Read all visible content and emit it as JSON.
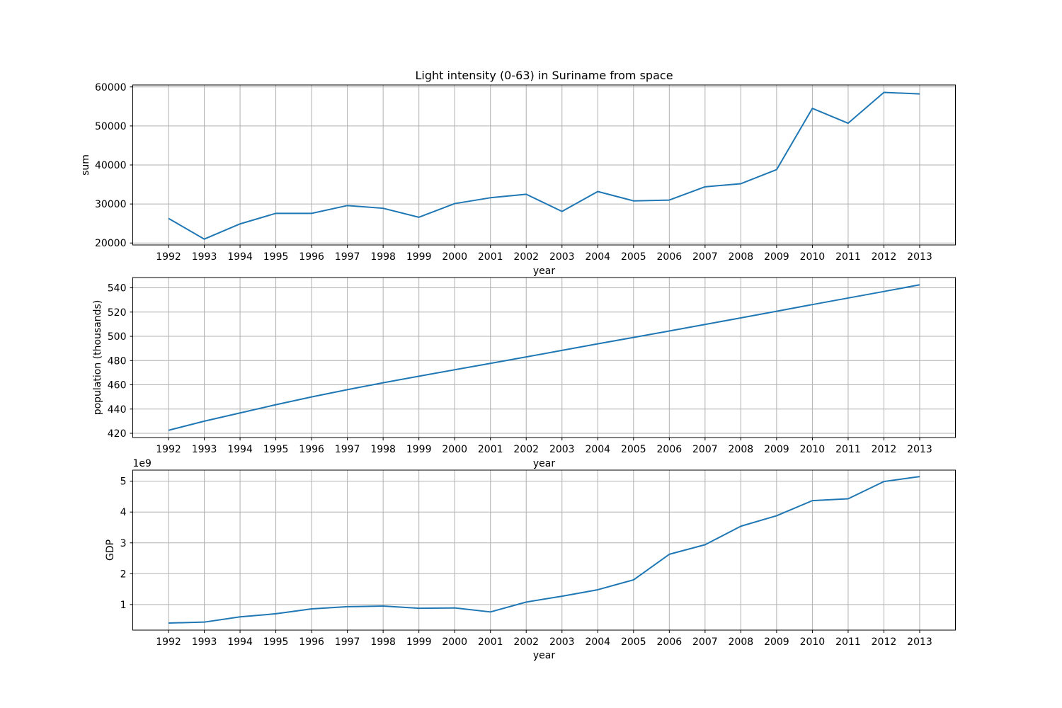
{
  "chart_data": [
    {
      "type": "line",
      "title": "Light intensity (0-63) in Suriname from space",
      "xlabel": "year",
      "ylabel": "sum",
      "x": [
        1992,
        1993,
        1994,
        1995,
        1996,
        1997,
        1998,
        1999,
        2000,
        2001,
        2002,
        2003,
        2004,
        2005,
        2006,
        2007,
        2008,
        2009,
        2010,
        2011,
        2012,
        2013
      ],
      "series": [
        {
          "values": [
            26300,
            21000,
            24900,
            27600,
            27600,
            29600,
            28900,
            26600,
            30100,
            31600,
            32500,
            28100,
            33200,
            30800,
            31000,
            34400,
            35200,
            38800,
            54500,
            50700,
            58600,
            58200
          ]
        }
      ],
      "xlim": [
        1991,
        2014
      ],
      "ylim": [
        19500,
        60500
      ],
      "yticks": [
        20000,
        30000,
        40000,
        50000,
        60000
      ],
      "ytick_labels": [
        "20000",
        "30000",
        "40000",
        "50000",
        "60000"
      ],
      "grid": true,
      "color": "#1f77b4"
    },
    {
      "type": "line",
      "title": "",
      "xlabel": "year",
      "ylabel": "population (thousands)",
      "x": [
        1992,
        1993,
        1994,
        1995,
        1996,
        1997,
        1998,
        1999,
        2000,
        2001,
        2002,
        2003,
        2004,
        2005,
        2006,
        2007,
        2008,
        2009,
        2010,
        2011,
        2012,
        2013
      ],
      "series": [
        {
          "values": [
            422.5,
            430.0,
            436.8,
            443.6,
            450.0,
            456.0,
            461.7,
            467.1,
            472.4,
            477.7,
            483.0,
            488.4,
            493.8,
            499.1,
            504.4,
            509.8,
            515.2,
            520.7,
            526.2,
            531.6,
            537.0,
            542.5
          ]
        }
      ],
      "xlim": [
        1991,
        2014
      ],
      "ylim": [
        416.5,
        548.5
      ],
      "yticks": [
        420,
        440,
        460,
        480,
        500,
        520,
        540
      ],
      "ytick_labels": [
        "420",
        "440",
        "460",
        "480",
        "500",
        "520",
        "540"
      ],
      "grid": true,
      "color": "#1f77b4"
    },
    {
      "type": "line",
      "title": "",
      "xlabel": "year",
      "ylabel": "GDP",
      "y_offset_label": "1e9",
      "x": [
        1992,
        1993,
        1994,
        1995,
        1996,
        1997,
        1998,
        1999,
        2000,
        2001,
        2002,
        2003,
        2004,
        2005,
        2006,
        2007,
        2008,
        2009,
        2010,
        2011,
        2012,
        2013
      ],
      "series": [
        {
          "values": [
            0.4,
            0.43,
            0.6,
            0.7,
            0.86,
            0.93,
            0.95,
            0.88,
            0.89,
            0.76,
            1.08,
            1.27,
            1.48,
            1.8,
            2.63,
            2.94,
            3.54,
            3.88,
            4.37,
            4.43,
            4.99,
            5.15
          ]
        }
      ],
      "xlim": [
        1991,
        2014
      ],
      "ylim": [
        0.17,
        5.36
      ],
      "yticks": [
        1,
        2,
        3,
        4,
        5
      ],
      "ytick_labels": [
        "1",
        "2",
        "3",
        "4",
        "5"
      ],
      "grid": true,
      "color": "#1f77b4"
    }
  ]
}
